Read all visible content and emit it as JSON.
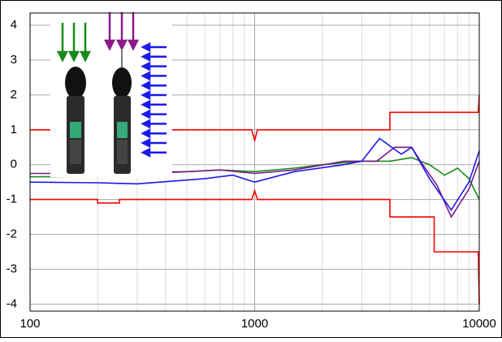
{
  "chart_data": {
    "type": "line",
    "xlim": [
      100,
      10000
    ],
    "ylim": [
      -4.2,
      4.35
    ],
    "xticks": [
      100,
      1000,
      10000
    ],
    "yticks": [
      -4,
      -3,
      -2,
      -1,
      0,
      1,
      2,
      3,
      4
    ],
    "x_log": true,
    "grid": true,
    "minor_grid": true,
    "series": [
      {
        "color": "#ff0000",
        "x": [
          100,
          200,
          200,
          250,
          250,
          970,
          1000,
          1030,
          4000,
          4000,
          9900,
          10000
        ],
        "values": [
          1,
          1,
          1.1,
          1.1,
          1,
          1,
          0.7,
          1,
          1,
          1.5,
          1.5,
          2
        ]
      },
      {
        "color": "#ff0000",
        "x": [
          100,
          200,
          200,
          250,
          250,
          970,
          1000,
          1030,
          4000,
          4000,
          6300,
          6300,
          9900,
          10000
        ],
        "values": [
          -1,
          -1,
          -1.1,
          -1.1,
          -1,
          -1,
          -0.75,
          -1,
          -1,
          -1.5,
          -1.5,
          -2.5,
          -2.5,
          -4
        ]
      },
      {
        "color": "#1a8a1a",
        "x": [
          100,
          200,
          300,
          500,
          700,
          1000,
          1500,
          2000,
          3000,
          4000,
          5000,
          6000,
          7000,
          8000,
          9000,
          10000
        ],
        "values": [
          -0.35,
          -0.33,
          -0.28,
          -0.2,
          -0.15,
          -0.2,
          -0.1,
          0,
          0.1,
          0.1,
          0.2,
          0,
          -0.3,
          -0.1,
          -0.4,
          -1
        ]
      },
      {
        "color": "#7a1a8a",
        "x": [
          100,
          200,
          300,
          500,
          700,
          1000,
          1500,
          2500,
          3500,
          4200,
          5000,
          5600,
          6500,
          7500,
          9000,
          10000
        ],
        "values": [
          -0.25,
          -0.25,
          -0.22,
          -0.2,
          -0.15,
          -0.25,
          -0.15,
          0.1,
          0.1,
          0.5,
          0.5,
          0,
          -0.6,
          -1.5,
          -0.7,
          0.1
        ]
      },
      {
        "color": "#1a1aee",
        "x": [
          100,
          200,
          300,
          600,
          800,
          1000,
          1500,
          2500,
          3000,
          3600,
          4500,
          5000,
          6000,
          7500,
          9000,
          10000
        ],
        "values": [
          -0.5,
          -0.52,
          -0.55,
          -0.4,
          -0.3,
          -0.5,
          -0.2,
          0,
          0.1,
          0.75,
          0.3,
          0.5,
          -0.4,
          -1.3,
          -0.5,
          0.4
        ]
      }
    ]
  }
}
